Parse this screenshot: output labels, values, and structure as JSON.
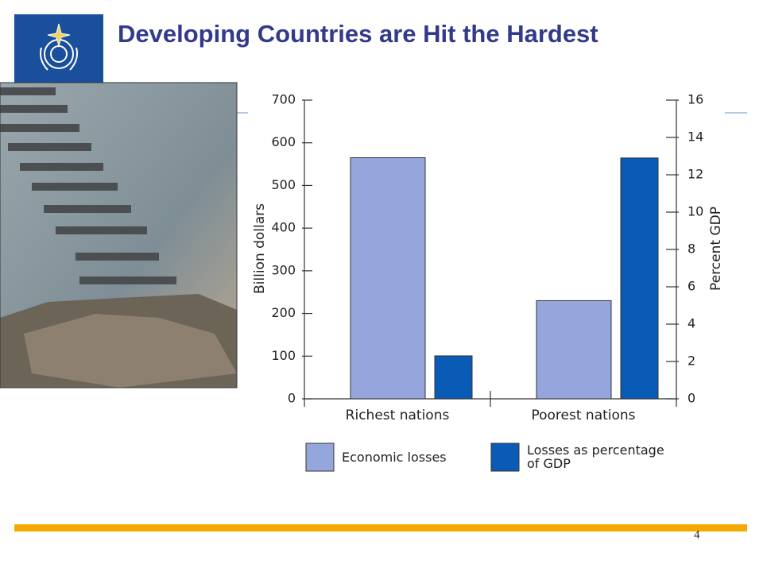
{
  "slide": {
    "title": "Developing Countries are Hit the Hardest",
    "page_number": "4"
  },
  "chart_data": {
    "type": "bar",
    "categories": [
      "Richest nations",
      "Poorest nations"
    ],
    "series": [
      {
        "name": "Economic losses",
        "color": "#94a6dc",
        "values": [
          565,
          230
        ]
      },
      {
        "name": "Losses as percentage of GDP",
        "color": "#0a5bb5",
        "values": [
          2.3,
          12.9
        ],
        "axis": "y2"
      }
    ],
    "ylabel": "Billion dollars",
    "y2label": "Percent GDP",
    "ylim": [
      0,
      700
    ],
    "yticks": [
      0,
      100,
      200,
      300,
      400,
      500,
      600,
      700
    ],
    "y2lim": [
      0,
      16
    ],
    "y2ticks": [
      0,
      2,
      4,
      6,
      8,
      10,
      12,
      14,
      16
    ],
    "legend": "bottom"
  }
}
